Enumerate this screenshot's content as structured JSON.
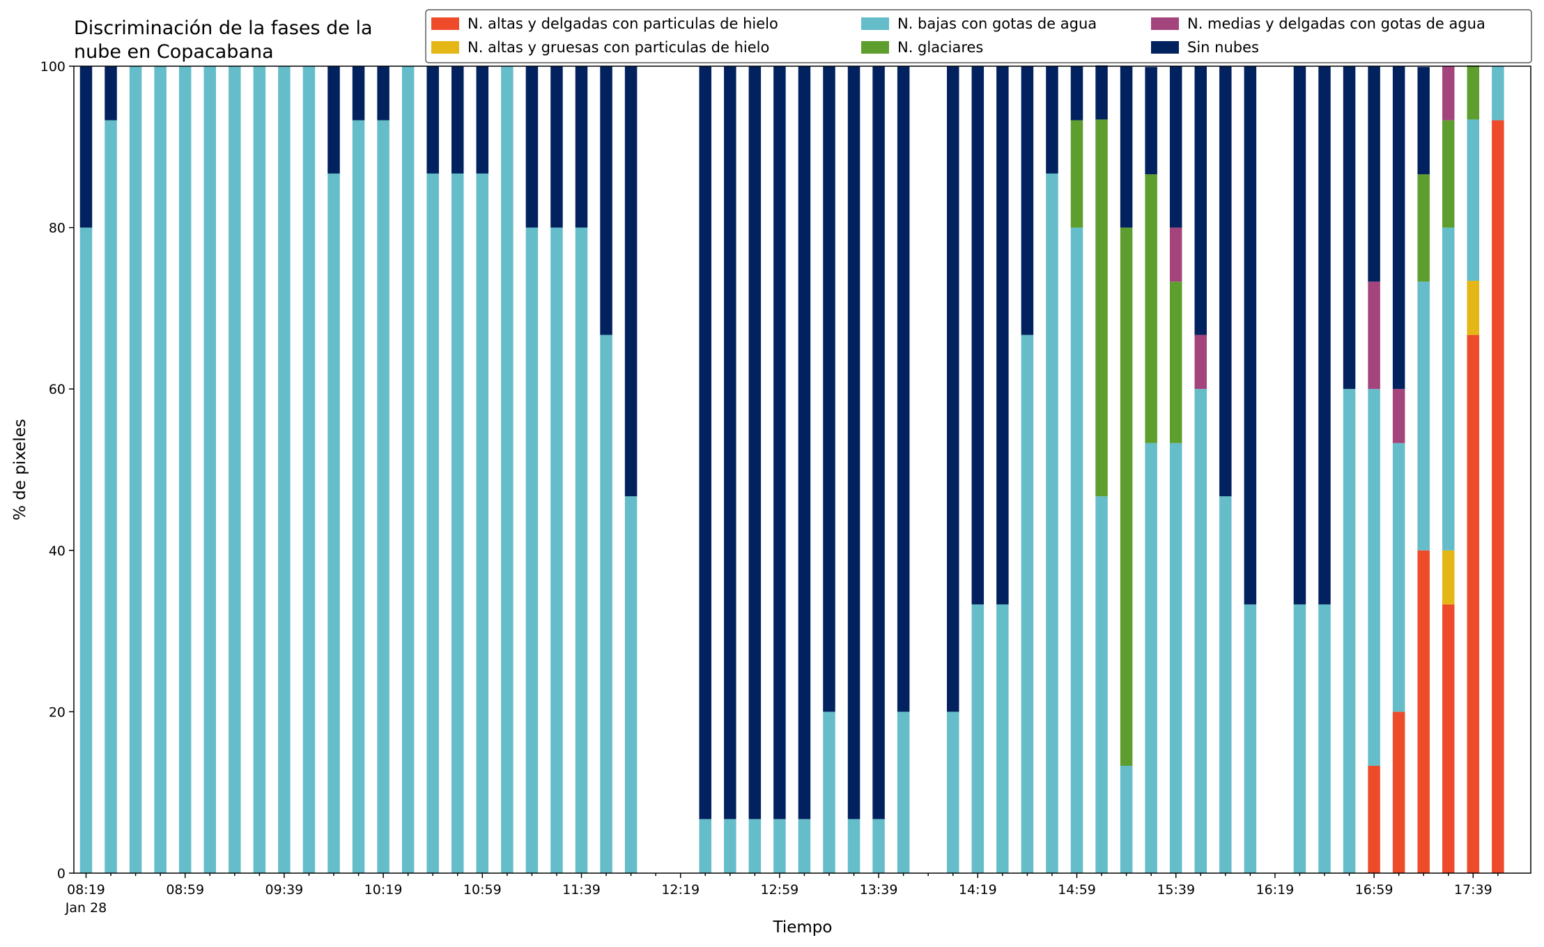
{
  "chart_data": {
    "type": "bar",
    "stacked": true,
    "title_lines": [
      "Discriminación de la fases de la",
      "nube en Copacabana"
    ],
    "xlabel": "Tiempo",
    "ylabel": "% de pixeles",
    "ylim": [
      0,
      100
    ],
    "yticks": [
      "0",
      "20",
      "40",
      "60",
      "80",
      "100"
    ],
    "grid": false,
    "legend_placement": "top-right",
    "date_label": "Jan 28",
    "x_tick_labels": [
      "08:19",
      "08:59",
      "09:39",
      "10:19",
      "10:59",
      "11:39",
      "12:19",
      "12:59",
      "13:39",
      "14:19",
      "14:59",
      "15:39",
      "16:19",
      "16:59",
      "17:39"
    ],
    "categories": [
      "08:19",
      "08:29",
      "08:39",
      "08:49",
      "08:59",
      "09:09",
      "09:19",
      "09:29",
      "09:39",
      "09:49",
      "09:59",
      "10:09",
      "10:19",
      "10:29",
      "10:39",
      "10:49",
      "10:59",
      "11:09",
      "11:19",
      "11:29",
      "11:39",
      "11:49",
      "11:59",
      "12:09",
      "12:19",
      "12:29",
      "12:39",
      "12:49",
      "12:59",
      "13:09",
      "13:19",
      "13:29",
      "13:39",
      "13:49",
      "13:59",
      "14:09",
      "14:19",
      "14:29",
      "14:39",
      "14:49",
      "14:59",
      "15:09",
      "15:19",
      "15:29",
      "15:39",
      "15:49",
      "15:59",
      "16:09",
      "16:19",
      "16:29",
      "16:39",
      "16:49",
      "16:59",
      "17:09",
      "17:19",
      "17:29",
      "17:39",
      "17:49"
    ],
    "series": [
      {
        "name": "N. altas y delgadas con particulas de hielo",
        "color": "#EE4B2B",
        "values": [
          0,
          0,
          0,
          0,
          0,
          0,
          0,
          0,
          0,
          0,
          0,
          0,
          0,
          0,
          0,
          0,
          0,
          0,
          0,
          0,
          0,
          0,
          0,
          0,
          0,
          0,
          0,
          0,
          0,
          0,
          0,
          0,
          0,
          0,
          0,
          0,
          0,
          0,
          0,
          0,
          0,
          0,
          0,
          0,
          0,
          0,
          0,
          0,
          0,
          0,
          0,
          0,
          13.3,
          20,
          40,
          33.3,
          66.7,
          93.3
        ]
      },
      {
        "name": "N. altas y gruesas con particulas de hielo",
        "color": "#E5B716",
        "values": [
          0,
          0,
          0,
          0,
          0,
          0,
          0,
          0,
          0,
          0,
          0,
          0,
          0,
          0,
          0,
          0,
          0,
          0,
          0,
          0,
          0,
          0,
          0,
          0,
          0,
          0,
          0,
          0,
          0,
          0,
          0,
          0,
          0,
          0,
          0,
          0,
          0,
          0,
          0,
          0,
          0,
          0,
          0,
          0,
          0,
          0,
          0,
          0,
          0,
          0,
          0,
          0,
          0,
          0,
          0,
          6.7,
          6.7,
          0
        ]
      },
      {
        "name": "N. bajas con gotas de agua",
        "color": "#64BDC9",
        "values": [
          80,
          93.3,
          100,
          100,
          100,
          100,
          100,
          100,
          100,
          100,
          86.7,
          93.3,
          93.3,
          100,
          86.7,
          86.7,
          86.7,
          100,
          80,
          80,
          80,
          66.7,
          46.7,
          0,
          0,
          6.7,
          6.7,
          6.7,
          6.7,
          6.7,
          20,
          6.7,
          6.7,
          20,
          0,
          20,
          33.3,
          33.3,
          66.7,
          86.7,
          80,
          46.7,
          13.3,
          53.3,
          53.3,
          60,
          46.7,
          33.3,
          0,
          33.3,
          33.3,
          60,
          46.7,
          33.3,
          33.3,
          40,
          20,
          6.7
        ]
      },
      {
        "name": "N. glaciares",
        "color": "#5E9E2E",
        "values": [
          0,
          0,
          0,
          0,
          0,
          0,
          0,
          0,
          0,
          0,
          0,
          0,
          0,
          0,
          0,
          0,
          0,
          0,
          0,
          0,
          0,
          0,
          0,
          0,
          0,
          0,
          0,
          0,
          0,
          0,
          0,
          0,
          0,
          0,
          0,
          0,
          0,
          0,
          0,
          0,
          13.3,
          46.7,
          66.7,
          33.3,
          20,
          0,
          0,
          0,
          0,
          0,
          0,
          0,
          0,
          0,
          13.3,
          13.3,
          6.7,
          0
        ]
      },
      {
        "name": "N. medias y delgadas con gotas de agua",
        "color": "#A4447C",
        "values": [
          0,
          0,
          0,
          0,
          0,
          0,
          0,
          0,
          0,
          0,
          0,
          0,
          0,
          0,
          0,
          0,
          0,
          0,
          0,
          0,
          0,
          0,
          0,
          0,
          0,
          0,
          0,
          0,
          0,
          0,
          0,
          0,
          0,
          0,
          0,
          0,
          0,
          0,
          0,
          0,
          0,
          0,
          0,
          0,
          6.7,
          6.7,
          0,
          0,
          0,
          0,
          0,
          0,
          13.3,
          6.7,
          0,
          6.7,
          0,
          0
        ]
      },
      {
        "name": "Sin nubes",
        "color": "#02215F",
        "values": [
          20,
          6.7,
          0,
          0,
          0,
          0,
          0,
          0,
          0,
          0,
          13.3,
          6.7,
          6.7,
          0,
          13.3,
          13.3,
          13.3,
          0,
          20,
          20,
          20,
          33.3,
          53.3,
          0,
          0,
          93.3,
          93.3,
          93.3,
          93.3,
          93.3,
          80,
          93.3,
          93.3,
          80,
          0,
          80,
          66.7,
          66.7,
          33.3,
          13.3,
          6.7,
          6.7,
          20,
          13.3,
          20,
          33.3,
          53.3,
          66.7,
          0,
          66.7,
          66.7,
          40,
          26.7,
          40,
          13.3,
          0,
          0,
          0
        ]
      }
    ],
    "legend_order": [
      0,
      1,
      2,
      3,
      4,
      5
    ]
  }
}
